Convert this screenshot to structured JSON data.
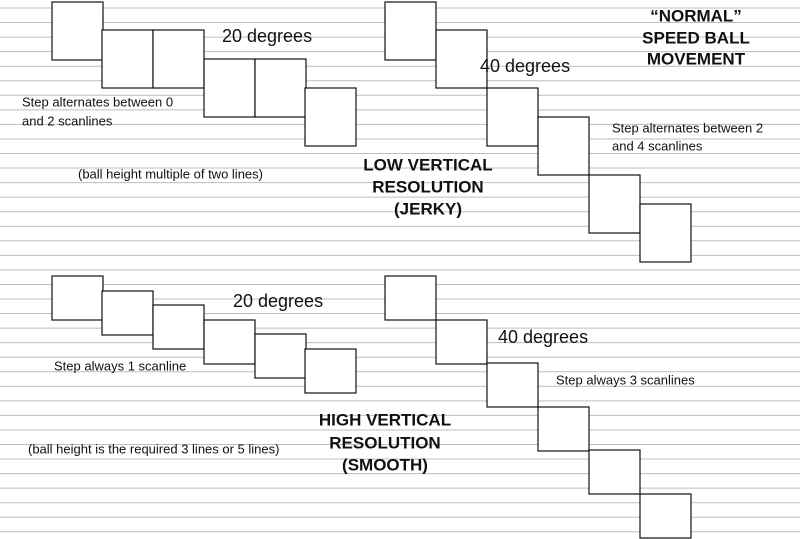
{
  "top_left": {
    "angle": "20 degrees",
    "step_line1": "Step alternates between 0",
    "step_line2": "and 2 scanlines",
    "note": "(ball height multiple of two lines)"
  },
  "top_right": {
    "angle": "40 degrees",
    "step_line1": "Step alternates between 2",
    "step_line2": "and 4 scanlines"
  },
  "normal_title": [
    "“NORMAL”",
    "SPEED BALL",
    "MOVEMENT"
  ],
  "low_res_title": [
    "LOW VERTICAL",
    "RESOLUTION",
    "(JERKY)"
  ],
  "bottom_left": {
    "angle": "20 degrees",
    "step": "Step always 1 scanline",
    "note": "(ball height is the required 3 lines or 5 lines)"
  },
  "bottom_right": {
    "angle": "40 degrees",
    "step": "Step always 3 scanlines"
  },
  "high_res_title": [
    "HIGH VERTICAL",
    "RESOLUTION",
    "(SMOOTH)"
  ]
}
